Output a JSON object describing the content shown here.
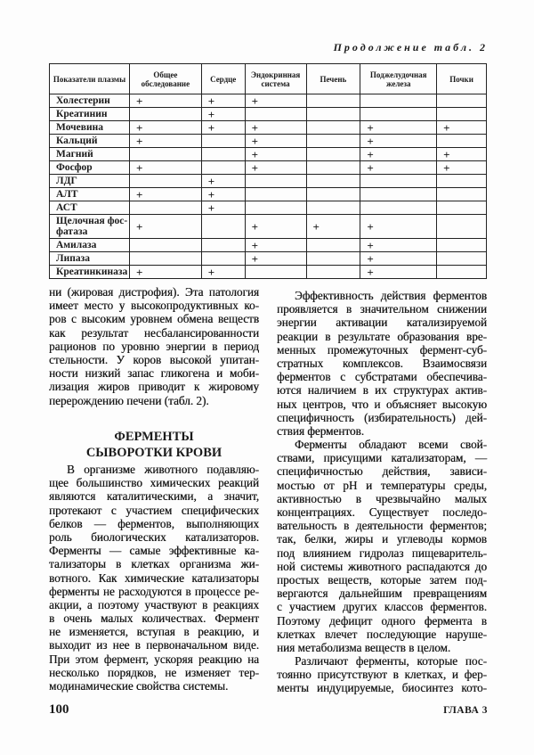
{
  "table_caption": "Продолжение табл. 2",
  "table": {
    "headers": [
      "Показатели плазмы",
      "Общее обследование",
      "Сердце",
      "Эндокринная система",
      "Печень",
      "Поджелудочная железа",
      "Почки"
    ],
    "rows": [
      {
        "name": "Холестерин",
        "marks": [
          "+",
          "+",
          "+",
          "",
          "",
          ""
        ]
      },
      {
        "name": "Креатинин",
        "marks": [
          "",
          "+",
          "",
          "",
          "",
          ""
        ]
      },
      {
        "name": "Мочевина",
        "marks": [
          "+",
          "+",
          "+",
          "",
          "+",
          "+"
        ]
      },
      {
        "name": "Кальций",
        "marks": [
          "+",
          "",
          "+",
          "",
          "+",
          ""
        ]
      },
      {
        "name": "Магний",
        "marks": [
          "",
          "",
          "+",
          "",
          "+",
          "+"
        ]
      },
      {
        "name": "Фосфор",
        "marks": [
          "+",
          "",
          "+",
          "",
          "+",
          "+"
        ]
      },
      {
        "name": "ЛДГ",
        "marks": [
          "",
          "+",
          "",
          "",
          "",
          ""
        ]
      },
      {
        "name": "АЛТ",
        "marks": [
          "+",
          "+",
          "",
          "",
          "",
          ""
        ]
      },
      {
        "name": "АСТ",
        "marks": [
          "",
          "+",
          "",
          "",
          "",
          ""
        ]
      },
      {
        "name": "Щелочная фос-фатаза",
        "marks": [
          "+",
          "",
          "+",
          "+",
          "+",
          ""
        ]
      },
      {
        "name": "Амилаза",
        "marks": [
          "",
          "",
          "+",
          "",
          "+",
          ""
        ]
      },
      {
        "name": "Липаза",
        "marks": [
          "",
          "",
          "+",
          "",
          "+",
          ""
        ]
      },
      {
        "name": "Креатинкиназа",
        "marks": [
          "+",
          "+",
          "",
          "",
          "+",
          ""
        ]
      }
    ]
  },
  "left_top": [
    "ни (жировая дистрофия). Эта патология",
    "имеет место у высокопродуктивных ко-",
    "ров с высоким уровнем обмена веществ",
    "как результат несбалансированности",
    "рационов по уровню энергии в период",
    "стельности. У коров высокой упитан-",
    "ности низкий запас гликогена и моби-",
    "лизация жиров приводит к жировому",
    "перерождению печени (табл. 2)."
  ],
  "heading": [
    "ФЕРМЕНТЫ",
    "СЫВОРОТКИ КРОВИ"
  ],
  "left_bottom": [
    "В организме животного подавляю-",
    "щее большинство химических реакций",
    "являются каталитическими, а значит,",
    "протекают с участием специфических",
    "белков — ферментов, выполняющих",
    "роль биологических катализаторов.",
    "Ферменты — самые эффективные ка-",
    "тализаторы в клетках организма жи-",
    "вотного. Как химические катализаторы",
    "ферменты не расходуются в процессе ре-",
    "акции, а поэтому участвуют в реакциях",
    "в очень малых количествах. Фермент",
    "не изменяется, вступая в реакцию, и",
    "выходит из нее в первоначальном виде.",
    "При этом фермент, ускоряя реакцию на",
    "несколько порядков, не изменяет тер-",
    "модинамические свойства системы."
  ],
  "right": [
    "Эффективность действия ферментов",
    "проявляется в значительном снижении",
    "энергии активации катализируемой",
    "реакции в результате образования вре-",
    "менных промежуточных фермент-суб-",
    "стратных комплексов. Взаимосвязи",
    "ферментов с субстратами обеспечива-",
    "ются наличием в их структурах актив-",
    "ных центров, что и объясняет высокую",
    "специфичность (избирательность) дей-",
    "ствия ферментов.",
    "Ферменты обладают всеми свой-",
    "ствами, присущими катализаторам, —",
    "специфичностью действия, зависи-",
    "мостью от рН и температуры среды,",
    "активностью в чрезвычайно малых",
    "концентрациях. Существует последо-",
    "вательность в деятельности ферментов;",
    "так, белки, жиры и углеводы кормов",
    "под влиянием гидролаз пищеваритель-",
    "ной системы животного распадаются до",
    "простых веществ, которые затем под-",
    "вергаются дальнейшим превращениям",
    "с участием других классов ферментов.",
    "Поэтому дефицит одного фермента в",
    "клетках влечет последующие наруше-",
    "ния метаболизма веществ в целом.",
    "Различают ферменты, которые пос-",
    "тоянно присутствуют в клетках, и фер-",
    "менты индуцируемые, биосинтез кото-"
  ],
  "page_number": "100",
  "chapter": "ГЛАВА 3"
}
